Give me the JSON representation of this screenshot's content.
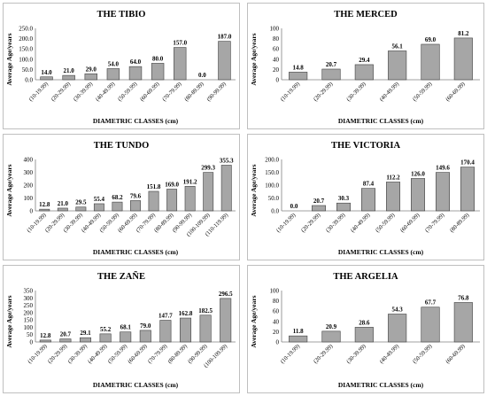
{
  "chart_data": [
    {
      "type": "bar",
      "title": "THE TIBIO",
      "xlabel": "DIAMETRIC CLASSES (cm)",
      "ylabel": "Average Age/years",
      "ylim": [
        0,
        250
      ],
      "yticks": [
        "0.0",
        "50.0",
        "100.0",
        "150.0",
        "200.0",
        "250.0"
      ],
      "categories": [
        "(10-19.99)",
        "(20-29.99)",
        "(30-39.99)",
        "(40-49.99)",
        "(50-59.99)",
        "(60-69.99)",
        "(70-79.99)",
        "(80-89.99)",
        "(90-99.99)"
      ],
      "values": [
        14.0,
        21.0,
        29.0,
        54.0,
        64.0,
        80.0,
        157.0,
        0.0,
        187.0
      ],
      "data_labels": [
        "14.0",
        "21.0",
        "29.0",
        "54.0",
        "64.0",
        "80.0",
        "157.0",
        "0.0",
        "187.0"
      ]
    },
    {
      "type": "bar",
      "title": "THE MERCED",
      "xlabel": "DIAMETRIC CLASSES (cm)",
      "ylabel": "Average Age/years",
      "ylim": [
        0,
        100
      ],
      "yticks": [
        "0",
        "20",
        "40",
        "60",
        "80",
        "100"
      ],
      "categories": [
        "(10-19.99)",
        "(20-29.99)",
        "(30-39.99)",
        "(40-49.99)",
        "(50-59.99)",
        "(60-69.99)"
      ],
      "values": [
        14.8,
        20.7,
        29.4,
        56.1,
        69.0,
        81.2
      ],
      "data_labels": [
        "14.8",
        "20.7",
        "29.4",
        "56.1",
        "69.0",
        "81.2"
      ]
    },
    {
      "type": "bar",
      "title": "THE TUNDO",
      "xlabel": "DIAMETRIC CLASSES (cm)",
      "ylabel": "Average Age/years",
      "ylim": [
        0,
        400
      ],
      "yticks": [
        "0",
        "100",
        "200",
        "300",
        "400"
      ],
      "categories": [
        "(10-19.99)",
        "(20-29.99)",
        "(30-39.99)",
        "(40-49.99)",
        "(50-59.99)",
        "(60-69.99)",
        "(70-79.99)",
        "(80-89.99)",
        "(90-99.99)",
        "(100-109.99)",
        "(110-119.99)"
      ],
      "values": [
        12.8,
        21.0,
        29.5,
        55.4,
        68.2,
        79.6,
        151.8,
        169.0,
        191.2,
        299.3,
        355.3
      ],
      "data_labels": [
        "12.8",
        "21.0",
        "29.5",
        "55.4",
        "68.2",
        "79.6",
        "151.8",
        "169.0",
        "191.2",
        "299.3",
        "355.3"
      ]
    },
    {
      "type": "bar",
      "title": "THE VICTORIA",
      "xlabel": "DIAMETRIC CLASSES (cm)",
      "ylabel": "Average Age/years",
      "ylim": [
        0,
        200
      ],
      "yticks": [
        "0.0",
        "50.0",
        "100.0",
        "150.0",
        "200.0"
      ],
      "categories": [
        "(10-19.99)",
        "(20-29.99)",
        "(30-39.99)",
        "(40-49.99)",
        "(50-59.99)",
        "(60-69.99)",
        "(70-79.99)",
        "(80-89.99)"
      ],
      "values": [
        0.0,
        20.7,
        30.3,
        87.4,
        112.2,
        126.0,
        149.6,
        170.4
      ],
      "data_labels": [
        "0.0",
        "20.7",
        "30.3",
        "87.4",
        "112.2",
        "126.0",
        "149.6",
        "170.4"
      ]
    },
    {
      "type": "bar",
      "title": "THE ZAÑE",
      "xlabel": "DIAMETRIC CLASSES (cm)",
      "ylabel": "Average Age/years",
      "ylim": [
        0,
        350
      ],
      "yticks": [
        "0",
        "50",
        "100",
        "150",
        "200",
        "250",
        "300",
        "350"
      ],
      "categories": [
        "(10-19.99)",
        "(20-29.99)",
        "(30-39.99)",
        "(40-49.99)",
        "(50-59.99)",
        "(60-69.99)",
        "(70-79.99)",
        "(80-89.99)",
        "(90-99.99)",
        "(100-109.99)"
      ],
      "values": [
        12.8,
        20.7,
        29.1,
        55.2,
        68.1,
        79.0,
        147.7,
        162.8,
        182.5,
        296.5
      ],
      "data_labels": [
        "12.8",
        "20.7",
        "29.1",
        "55.2",
        "68.1",
        "79.0",
        "147.7",
        "162.8",
        "182.5",
        "296.5"
      ]
    },
    {
      "type": "bar",
      "title": "THE ARGELIA",
      "xlabel": "DIAMETRIC CLASSES (cm)",
      "ylabel": "Average Age/years",
      "ylim": [
        0,
        100
      ],
      "yticks": [
        "0",
        "20",
        "40",
        "60",
        "80",
        "100"
      ],
      "categories": [
        "(10-19.99)",
        "(20-29.99)",
        "(30-39.99)",
        "(40-49.99)",
        "(50-59.99)",
        "(60-69.99)"
      ],
      "values": [
        11.8,
        20.9,
        28.6,
        54.3,
        67.7,
        76.8
      ],
      "data_labels": [
        "11.8",
        "20.9",
        "28.6",
        "54.3",
        "67.7",
        "76.8"
      ]
    }
  ],
  "colors": {
    "bar_fill": "#a6a6a6",
    "bar_stroke": "#404040",
    "axis": "#808080",
    "text": "#000000",
    "panel_border": "#bfbfbf"
  }
}
